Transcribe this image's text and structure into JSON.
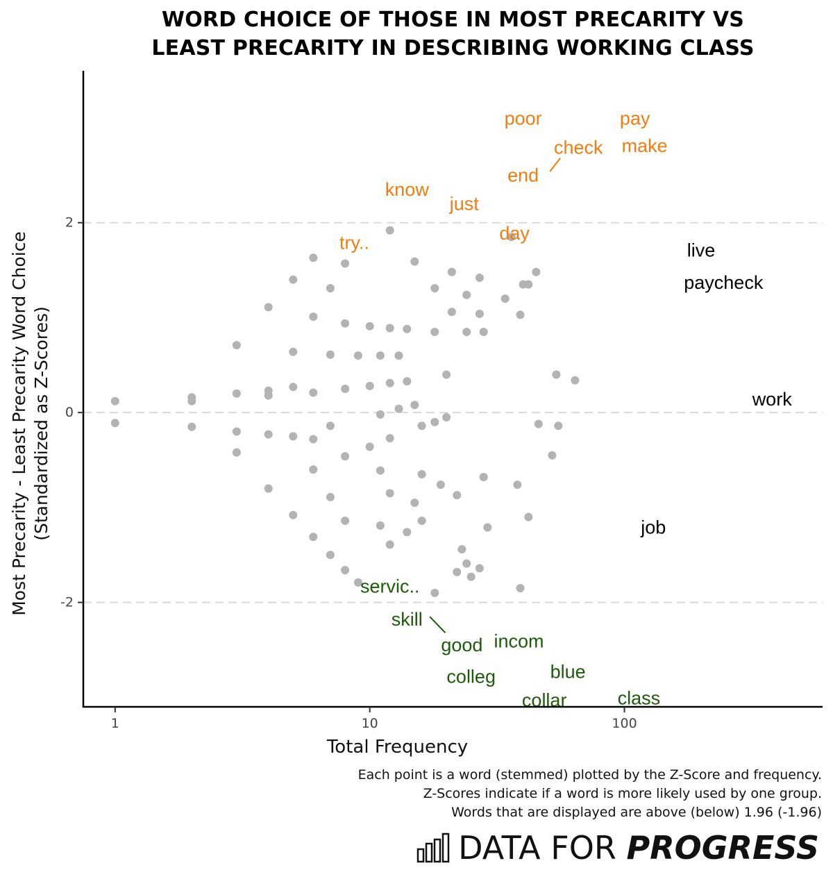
{
  "chart_data": {
    "type": "scatter",
    "title_lines": [
      "WORD CHOICE OF THOSE IN MOST PRECARITY VS",
      "LEAST PRECARITY IN DESCRIBING WORKING CLASS"
    ],
    "xlabel": "Total Frequency",
    "ylabel_lines": [
      "Most Precarity - Least Precarity Word Choice",
      "(Standardized as Z-Scores)"
    ],
    "x_scale": "log10",
    "xlim": [
      0.75,
      600
    ],
    "ylim": [
      -3.1,
      3.6
    ],
    "x_ticks": [
      1,
      10,
      100
    ],
    "x_tick_labels": [
      "1",
      "10",
      "100"
    ],
    "y_ticks": [
      2,
      0,
      -2
    ],
    "y_tick_labels": [
      "2",
      "0",
      "-2"
    ],
    "gridlines_y": [
      2,
      0,
      -2
    ],
    "colors": {
      "points": "#b3b3b3",
      "most_precarity": "#f47c0e",
      "least_precarity": "#1a5c0a",
      "neutral": "#000000",
      "grid": "#d9d9d9"
    },
    "points": [
      [
        1,
        0.12
      ],
      [
        1,
        -0.11
      ],
      [
        2,
        0.16
      ],
      [
        2,
        0.12
      ],
      [
        2,
        -0.15
      ],
      [
        3,
        0.71
      ],
      [
        3,
        0.2
      ],
      [
        3,
        -0.2
      ],
      [
        3,
        -0.42
      ],
      [
        4,
        1.11
      ],
      [
        4,
        0.23
      ],
      [
        4,
        0.18
      ],
      [
        4,
        -0.23
      ],
      [
        4,
        -0.8
      ],
      [
        5,
        1.4
      ],
      [
        5,
        0.64
      ],
      [
        5,
        0.27
      ],
      [
        5,
        -0.25
      ],
      [
        5,
        -1.08
      ],
      [
        6,
        1.63
      ],
      [
        6,
        1.01
      ],
      [
        6,
        0.21
      ],
      [
        6,
        -0.28
      ],
      [
        6,
        -0.6
      ],
      [
        6,
        -1.31
      ],
      [
        7,
        1.31
      ],
      [
        7,
        0.61
      ],
      [
        7,
        -0.14
      ],
      [
        7,
        -0.89
      ],
      [
        7,
        -1.5
      ],
      [
        8,
        1.57
      ],
      [
        8,
        0.94
      ],
      [
        8,
        0.25
      ],
      [
        8,
        -0.46
      ],
      [
        8,
        -1.14
      ],
      [
        8,
        -1.66
      ],
      [
        9,
        0.6
      ],
      [
        9,
        -1.79
      ],
      [
        10,
        0.91
      ],
      [
        10,
        0.28
      ],
      [
        10,
        -0.36
      ],
      [
        11,
        0.6
      ],
      [
        11,
        -0.02
      ],
      [
        11,
        -0.61
      ],
      [
        11,
        -1.19
      ],
      [
        12,
        1.92
      ],
      [
        12,
        0.89
      ],
      [
        12,
        0.31
      ],
      [
        12,
        -0.27
      ],
      [
        12,
        -0.85
      ],
      [
        12,
        -1.39
      ],
      [
        13,
        0.6
      ],
      [
        13,
        0.04
      ],
      [
        14,
        0.88
      ],
      [
        14,
        0.33
      ],
      [
        14,
        -1.26
      ],
      [
        15,
        1.59
      ],
      [
        15,
        0.08
      ],
      [
        15,
        -0.95
      ],
      [
        16,
        -0.14
      ],
      [
        16,
        -0.65
      ],
      [
        16,
        -1.14
      ],
      [
        18,
        1.31
      ],
      [
        18,
        0.85
      ],
      [
        18,
        -0.1
      ],
      [
        18,
        -1.9
      ],
      [
        19,
        -0.76
      ],
      [
        20,
        0.4
      ],
      [
        20,
        -0.05
      ],
      [
        21,
        1.48
      ],
      [
        21,
        1.06
      ],
      [
        22,
        -0.87
      ],
      [
        22,
        -1.68
      ],
      [
        23,
        -1.44
      ],
      [
        24,
        1.24
      ],
      [
        24,
        0.85
      ],
      [
        24,
        -1.59
      ],
      [
        25,
        -1.73
      ],
      [
        27,
        1.42
      ],
      [
        27,
        1.04
      ],
      [
        27,
        -1.64
      ],
      [
        28,
        0.85
      ],
      [
        28,
        -0.68
      ],
      [
        29,
        -1.21
      ],
      [
        34,
        1.2
      ],
      [
        36,
        1.85
      ],
      [
        38,
        -0.76
      ],
      [
        39,
        1.03
      ],
      [
        39,
        -1.85
      ],
      [
        40,
        1.35
      ],
      [
        42,
        1.35
      ],
      [
        42,
        -1.1
      ],
      [
        45,
        1.48
      ],
      [
        46,
        -0.12
      ],
      [
        54,
        0.4
      ],
      [
        55,
        -0.14
      ],
      [
        52,
        -0.45
      ],
      [
        64,
        0.34
      ]
    ],
    "labels": [
      {
        "text": "poor",
        "x": 40,
        "y": 3.1,
        "group": "most"
      },
      {
        "text": "pay",
        "x": 110,
        "y": 3.1,
        "group": "most"
      },
      {
        "text": "check",
        "x": 66,
        "y": 2.79,
        "group": "most"
      },
      {
        "text": "make",
        "x": 120,
        "y": 2.81,
        "group": "most"
      },
      {
        "text": "end",
        "x": 40,
        "y": 2.5,
        "group": "most"
      },
      {
        "text": "know",
        "x": 14,
        "y": 2.35,
        "group": "most"
      },
      {
        "text": "just",
        "x": 23.5,
        "y": 2.2,
        "group": "most"
      },
      {
        "text": "day",
        "x": 37,
        "y": 1.89,
        "group": "most"
      },
      {
        "text": "try..",
        "x": 8.7,
        "y": 1.79,
        "group": "most"
      },
      {
        "text": "live",
        "x": 200,
        "y": 1.71,
        "group": "neutral"
      },
      {
        "text": "paycheck",
        "x": 245,
        "y": 1.37,
        "group": "neutral"
      },
      {
        "text": "work",
        "x": 380,
        "y": 0.14,
        "group": "neutral"
      },
      {
        "text": "job",
        "x": 130,
        "y": -1.21,
        "group": "neutral"
      },
      {
        "text": "servic..",
        "x": 12,
        "y": -1.83,
        "group": "least"
      },
      {
        "text": "skill",
        "x": 14,
        "y": -2.18,
        "group": "least"
      },
      {
        "text": "good",
        "x": 23,
        "y": -2.45,
        "group": "least"
      },
      {
        "text": "incom",
        "x": 38.5,
        "y": -2.41,
        "group": "least"
      },
      {
        "text": "colleg",
        "x": 25,
        "y": -2.78,
        "group": "least"
      },
      {
        "text": "blue",
        "x": 60,
        "y": -2.73,
        "group": "least"
      },
      {
        "text": "collar",
        "x": 48.5,
        "y": -3.03,
        "group": "least"
      },
      {
        "text": "class",
        "x": 114,
        "y": -3.01,
        "group": "least"
      }
    ],
    "leader_lines": [
      {
        "from": [
          51,
          2.54
        ],
        "to": [
          56,
          2.68
        ],
        "group": "most"
      },
      {
        "from": [
          17.2,
          -2.15
        ],
        "to": [
          19.8,
          -2.32
        ],
        "group": "least"
      }
    ]
  },
  "caption_lines": [
    "Each point is a word (stemmed) plotted by the Z-Score and frequency.",
    "Z-Scores indicate if a word is more likely used by one group.",
    "Words that are displayed are above (below) 1.96 (-1.96)"
  ],
  "logo": {
    "text_regular": "DATA FOR",
    "text_bold": "PROGRESS",
    "icon": "bar-chart-icon"
  }
}
